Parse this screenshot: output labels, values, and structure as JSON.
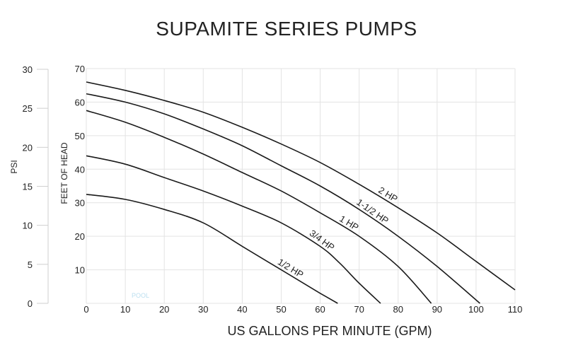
{
  "chart_data": {
    "type": "line",
    "title": "SUPAMITE SERIES PUMPS",
    "xlabel": "US GALLONS PER MINUTE (GPM)",
    "ylabel": "FEET OF HEAD",
    "y2label": "PSI",
    "xlim": [
      0,
      110
    ],
    "ylim": [
      0,
      70
    ],
    "y2lim": [
      0,
      30
    ],
    "x_ticks": [
      0,
      10,
      20,
      30,
      40,
      50,
      60,
      70,
      80,
      90,
      100,
      110
    ],
    "y_ticks": [
      10,
      20,
      30,
      40,
      50,
      60,
      70
    ],
    "y2_ticks": [
      0,
      5,
      10,
      15,
      20,
      25,
      30
    ],
    "grid": true,
    "watermark": "POOL",
    "series": [
      {
        "name": "1/2 HP",
        "x": [
          0,
          10,
          20,
          30,
          40,
          50,
          55,
          60,
          64.5
        ],
        "y": [
          32.5,
          31,
          28,
          24,
          17,
          10,
          6.5,
          3,
          0
        ]
      },
      {
        "name": "3/4 HP",
        "x": [
          0,
          10,
          20,
          30,
          40,
          50,
          60,
          65,
          70,
          75.5
        ],
        "y": [
          44,
          41.5,
          37.5,
          33.5,
          29,
          24,
          17,
          12,
          6,
          0
        ]
      },
      {
        "name": "1 HP",
        "x": [
          0,
          10,
          20,
          30,
          40,
          50,
          60,
          70,
          80,
          88.5
        ],
        "y": [
          57.5,
          54,
          49.5,
          44.5,
          39,
          33.5,
          27,
          20,
          11,
          0
        ]
      },
      {
        "name": "1-1/2 HP",
        "x": [
          0,
          10,
          20,
          30,
          40,
          50,
          60,
          70,
          80,
          90,
          101
        ],
        "y": [
          62.5,
          60,
          56.5,
          52,
          47,
          41,
          35,
          28,
          20,
          11,
          0
        ]
      },
      {
        "name": "2 HP",
        "x": [
          0,
          10,
          20,
          30,
          40,
          50,
          60,
          70,
          80,
          90,
          100,
          110
        ],
        "y": [
          66,
          63.5,
          60.5,
          57,
          52.5,
          47.5,
          42,
          35.5,
          28.5,
          21,
          12.5,
          4
        ]
      }
    ]
  }
}
